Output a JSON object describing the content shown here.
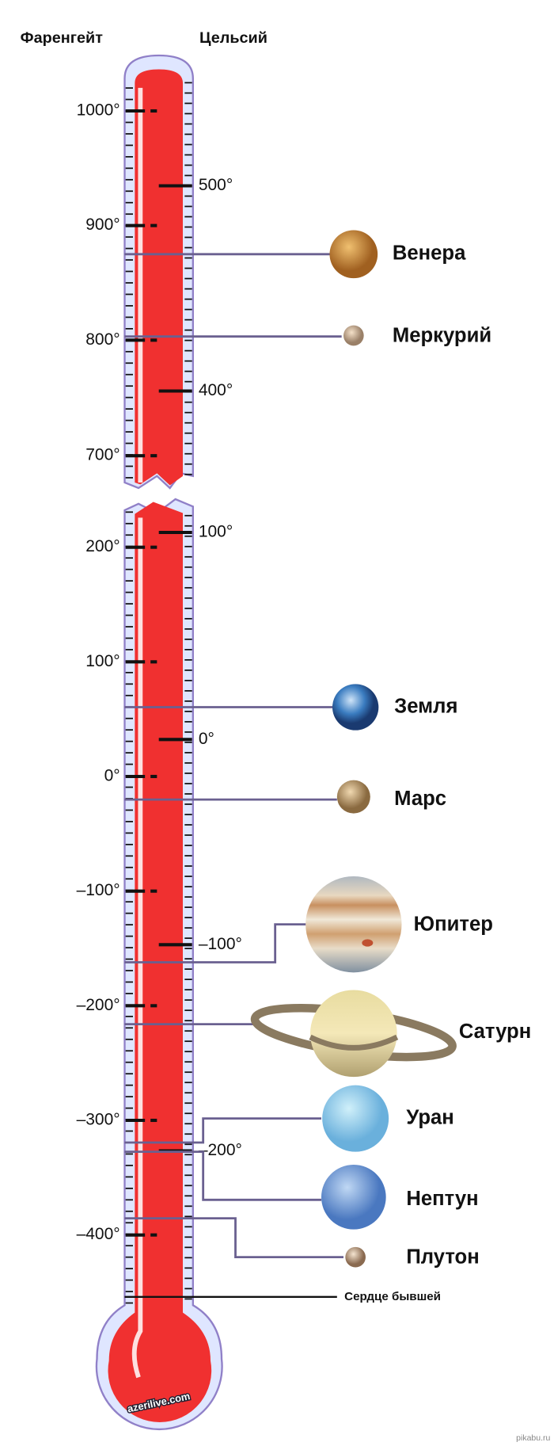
{
  "header": {
    "fahrenheit": "Фаренгейт",
    "celsius": "Цельсий"
  },
  "fahrenheit_labels": [
    "1000°",
    "900°",
    "800°",
    "700°",
    "200°",
    "100°",
    "0°",
    "–100°",
    "–200°",
    "–300°",
    "–400°"
  ],
  "celsius_labels": [
    "500°",
    "400°",
    "100°",
    "0°",
    "–100°",
    "–200°"
  ],
  "planets": [
    "Венера",
    "Меркурий",
    "Земля",
    "Марс",
    "Юпитер",
    "Сатурн",
    "Уран",
    "Нептун",
    "Плутон"
  ],
  "heart_label": "Сердце бывшей",
  "watermark": "azerilive.com",
  "site": "pikabu.ru"
}
